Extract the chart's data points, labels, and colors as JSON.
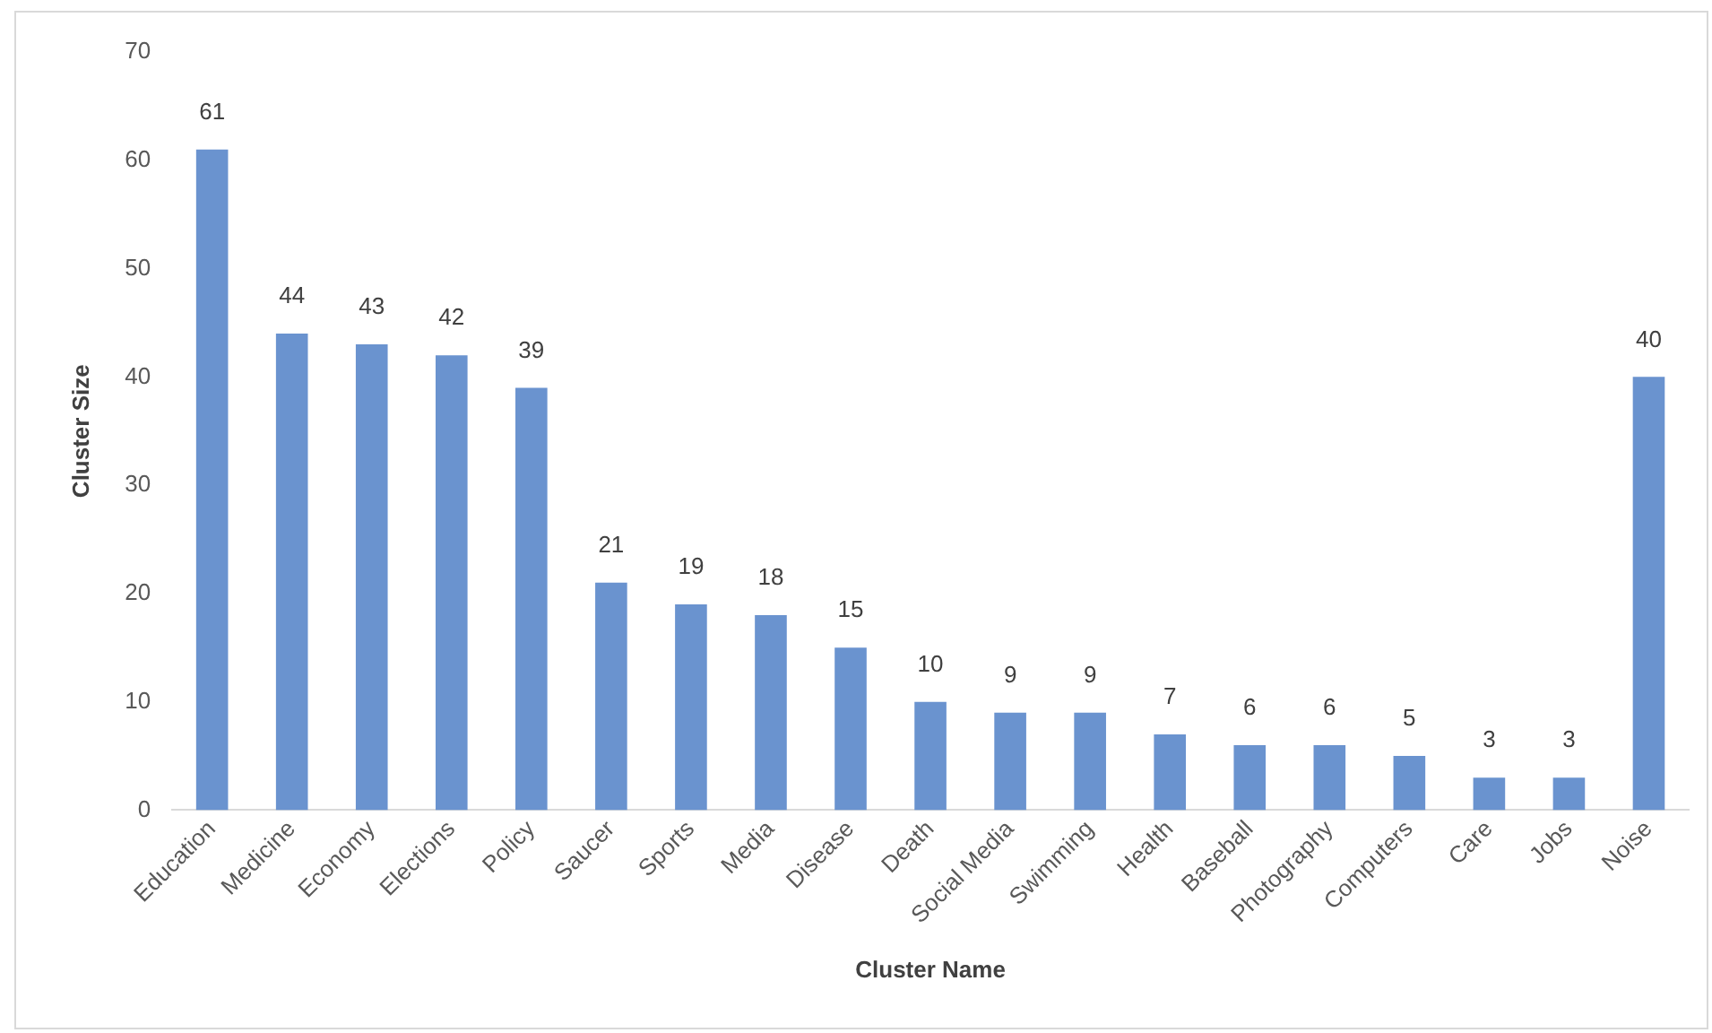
{
  "chart_data": {
    "type": "bar",
    "xlabel": "Cluster Name",
    "ylabel": "Cluster Size",
    "categories": [
      "Education",
      "Medicine",
      "Economy",
      "Elections",
      "Policy",
      "Saucer",
      "Sports",
      "Media",
      "Disease",
      "Death",
      "Social Media",
      "Swimming",
      "Health",
      "Baseball",
      "Photography",
      "Computers",
      "Care",
      "Jobs",
      "Noise"
    ],
    "values": [
      61,
      44,
      43,
      42,
      39,
      21,
      19,
      18,
      15,
      10,
      9,
      9,
      7,
      6,
      6,
      5,
      3,
      3,
      40
    ],
    "color": "#6a93cf",
    "ylim": [
      0,
      70
    ],
    "yticks": [
      0,
      10,
      20,
      30,
      40,
      50,
      60,
      70
    ],
    "grid": false,
    "legend": false,
    "data_labels": true
  }
}
